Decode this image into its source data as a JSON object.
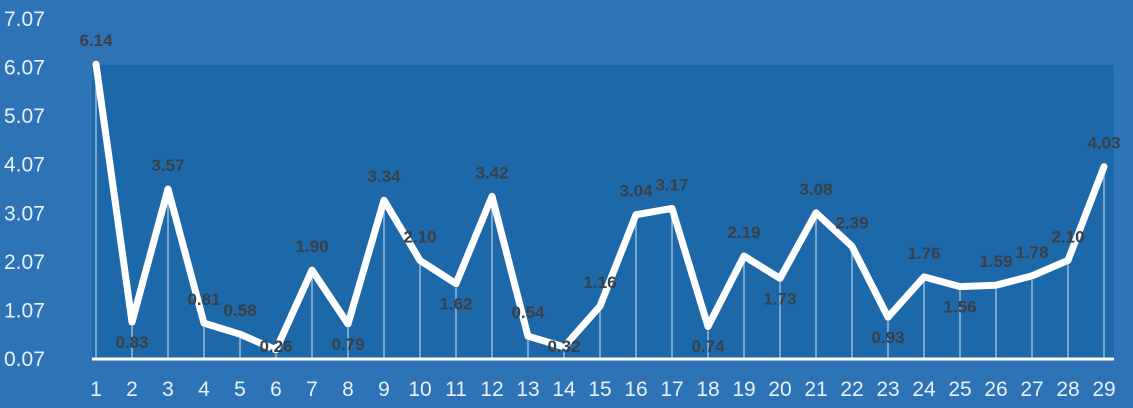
{
  "chart_data": {
    "type": "line",
    "x": [
      "1",
      "2",
      "3",
      "4",
      "5",
      "6",
      "7",
      "8",
      "9",
      "10",
      "11",
      "12",
      "13",
      "14",
      "15",
      "16",
      "17",
      "18",
      "19",
      "20",
      "21",
      "22",
      "23",
      "24",
      "25",
      "26",
      "27",
      "28",
      "29"
    ],
    "series": [
      {
        "values": [
          6.14,
          0.83,
          3.57,
          0.81,
          0.58,
          0.26,
          1.9,
          0.79,
          3.34,
          2.1,
          1.62,
          3.42,
          0.54,
          0.32,
          1.16,
          3.04,
          3.17,
          0.74,
          2.19,
          1.73,
          3.08,
          2.39,
          0.93,
          1.76,
          1.56,
          1.59,
          1.78,
          2.1,
          4.03
        ],
        "labels": [
          "6.14",
          "0.83",
          "3.57",
          "0.81",
          "0.58",
          "0.26",
          "1.90",
          "0.79",
          "3.34",
          "2.10",
          "1.62",
          "3.42",
          "0.54",
          "0.32",
          "1.16",
          "3.04",
          "3.17",
          "0.74",
          "2.19",
          "1.73",
          "3.08",
          "2.39",
          "0.93",
          "1.76",
          "1.56",
          "1.59",
          "1.78",
          "2.10",
          "4.03"
        ]
      }
    ],
    "yticks": [
      "0.07",
      "1.07",
      "2.07",
      "3.07",
      "4.07",
      "5.07",
      "6.07",
      "7.07"
    ],
    "ylim": [
      0.07,
      7.07
    ],
    "grid": false,
    "colors": {
      "background": "#2d73b6",
      "plot_area": "#1c68a8",
      "line": "#ffffff",
      "tick_text": "#e8f2fb",
      "data_label": "#3a3f45"
    }
  }
}
